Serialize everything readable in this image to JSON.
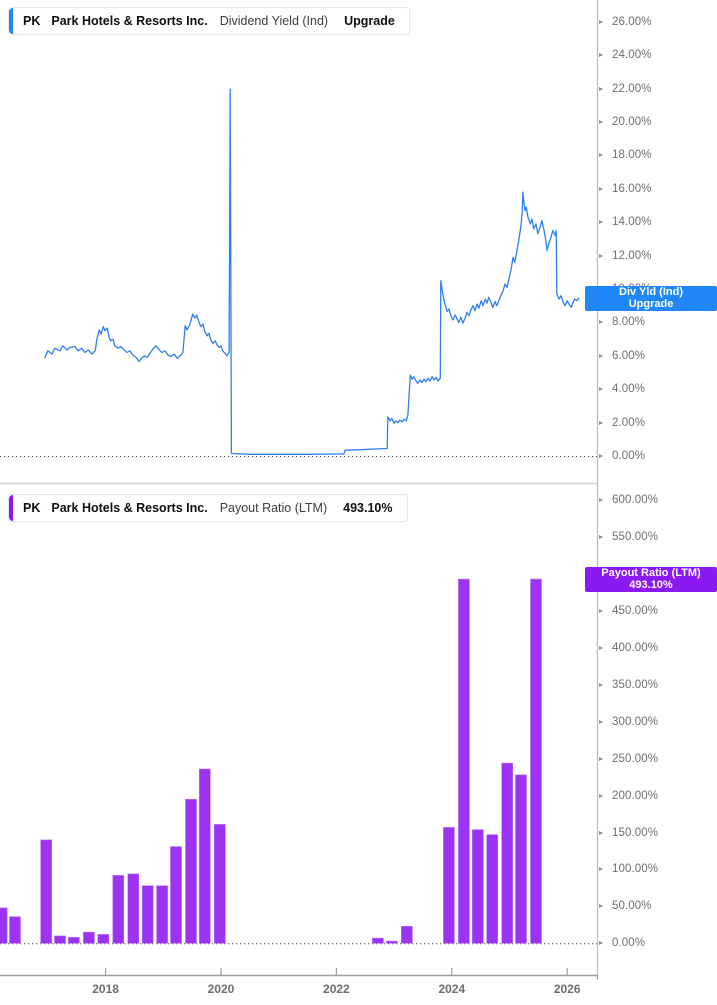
{
  "panels": {
    "top": {
      "ticker": "PK",
      "company": "Park Hotels & Resorts Inc.",
      "metric": "Dividend Yield (Ind)",
      "action": "Upgrade"
    },
    "bottom": {
      "ticker": "PK",
      "company": "Park Hotels & Resorts Inc.",
      "metric": "Payout Ratio (LTM)",
      "value": "493.10%"
    }
  },
  "axis_badges": {
    "dividend_yield": {
      "line1": "Div Yld (Ind)",
      "line2": "Upgrade",
      "color": "#1f87f7",
      "value_pct": 9.45
    },
    "payout_ratio": {
      "line1": "Payout Ratio (LTM)",
      "line2": "493.10%",
      "color": "#8c18f2",
      "value_pct": 493.1
    }
  },
  "x_axis": {
    "ticks": [
      2018,
      2020,
      2022,
      2024,
      2026
    ]
  },
  "colors": {
    "line_blue": "#2e7fef",
    "bar_purple": "#9c33f2",
    "bar_purple_edge": "#b873f8",
    "axis_line": "#bdbdbd",
    "divider": "#dcdcdc",
    "bottom_axis": "#9b9b9b",
    "zero_dotted": "#4a4a4a",
    "tick_text": "#6e6e6e"
  },
  "chart_data": [
    {
      "type": "line",
      "title": "Dividend Yield (Ind)",
      "ticker": "PK",
      "company": "Park Hotels & Resorts Inc.",
      "unit": "percent",
      "legend_position": "right-axis-badge",
      "grid": false,
      "x_unit": "year",
      "xlim": [
        2016.15,
        2026.5
      ],
      "ylim": [
        0,
        27.3
      ],
      "yticks": [
        0,
        2,
        4,
        6,
        8,
        10,
        12,
        14,
        16,
        18,
        20,
        22,
        24,
        26
      ],
      "zero_line": 0,
      "last_value_pct": 9.45,
      "points": [
        [
          2016.95,
          5.9
        ],
        [
          2017.0,
          6.3
        ],
        [
          2017.07,
          6.1
        ],
        [
          2017.12,
          6.45
        ],
        [
          2017.21,
          6.3
        ],
        [
          2017.26,
          6.6
        ],
        [
          2017.33,
          6.35
        ],
        [
          2017.38,
          6.5
        ],
        [
          2017.47,
          6.55
        ],
        [
          2017.52,
          6.3
        ],
        [
          2017.59,
          6.45
        ],
        [
          2017.64,
          6.2
        ],
        [
          2017.7,
          6.35
        ],
        [
          2017.76,
          6.1
        ],
        [
          2017.82,
          6.3
        ],
        [
          2017.85,
          7.0
        ],
        [
          2017.89,
          7.55
        ],
        [
          2017.92,
          7.3
        ],
        [
          2017.96,
          7.75
        ],
        [
          2017.99,
          7.5
        ],
        [
          2018.03,
          7.65
        ],
        [
          2018.06,
          7.1
        ],
        [
          2018.09,
          6.9
        ],
        [
          2018.13,
          7.0
        ],
        [
          2018.16,
          6.6
        ],
        [
          2018.22,
          6.45
        ],
        [
          2018.27,
          6.55
        ],
        [
          2018.32,
          6.35
        ],
        [
          2018.37,
          6.2
        ],
        [
          2018.42,
          6.3
        ],
        [
          2018.47,
          6.05
        ],
        [
          2018.53,
          5.9
        ],
        [
          2018.58,
          5.65
        ],
        [
          2018.61,
          5.8
        ],
        [
          2018.67,
          6.0
        ],
        [
          2018.72,
          5.9
        ],
        [
          2018.77,
          6.15
        ],
        [
          2018.82,
          6.4
        ],
        [
          2018.87,
          6.6
        ],
        [
          2018.93,
          6.35
        ],
        [
          2018.98,
          6.2
        ],
        [
          2019.03,
          6.3
        ],
        [
          2019.08,
          6.05
        ],
        [
          2019.13,
          5.95
        ],
        [
          2019.19,
          6.1
        ],
        [
          2019.24,
          5.85
        ],
        [
          2019.29,
          6.0
        ],
        [
          2019.34,
          6.2
        ],
        [
          2019.38,
          7.8
        ],
        [
          2019.41,
          7.55
        ],
        [
          2019.45,
          7.8
        ],
        [
          2019.48,
          8.1
        ],
        [
          2019.51,
          8.5
        ],
        [
          2019.55,
          8.25
        ],
        [
          2019.58,
          8.45
        ],
        [
          2019.62,
          8.0
        ],
        [
          2019.65,
          7.75
        ],
        [
          2019.69,
          7.9
        ],
        [
          2019.72,
          7.45
        ],
        [
          2019.76,
          7.2
        ],
        [
          2019.79,
          7.35
        ],
        [
          2019.83,
          6.9
        ],
        [
          2019.86,
          6.75
        ],
        [
          2019.9,
          6.9
        ],
        [
          2019.93,
          6.65
        ],
        [
          2019.97,
          6.5
        ],
        [
          2020.0,
          6.6
        ],
        [
          2020.03,
          6.3
        ],
        [
          2020.07,
          6.15
        ],
        [
          2020.1,
          6.0
        ],
        [
          2020.14,
          6.2
        ],
        [
          2020.16,
          21.97
        ],
        [
          2020.18,
          0.15
        ],
        [
          2020.5,
          0.1
        ],
        [
          2021.0,
          0.1
        ],
        [
          2021.5,
          0.1
        ],
        [
          2022.0,
          0.12
        ],
        [
          2022.13,
          0.12
        ],
        [
          2022.15,
          0.35
        ],
        [
          2022.41,
          0.38
        ],
        [
          2022.67,
          0.42
        ],
        [
          2022.88,
          0.45
        ],
        [
          2022.89,
          2.35
        ],
        [
          2022.93,
          2.1
        ],
        [
          2022.96,
          2.25
        ],
        [
          2023.0,
          1.95
        ],
        [
          2023.03,
          2.1
        ],
        [
          2023.07,
          2.0
        ],
        [
          2023.1,
          2.15
        ],
        [
          2023.14,
          2.05
        ],
        [
          2023.17,
          2.2
        ],
        [
          2023.21,
          2.1
        ],
        [
          2023.24,
          2.45
        ],
        [
          2023.28,
          4.85
        ],
        [
          2023.31,
          4.6
        ],
        [
          2023.34,
          4.75
        ],
        [
          2023.38,
          4.5
        ],
        [
          2023.41,
          4.35
        ],
        [
          2023.45,
          4.55
        ],
        [
          2023.48,
          4.4
        ],
        [
          2023.52,
          4.6
        ],
        [
          2023.55,
          4.45
        ],
        [
          2023.59,
          4.65
        ],
        [
          2023.62,
          4.5
        ],
        [
          2023.66,
          4.75
        ],
        [
          2023.69,
          4.55
        ],
        [
          2023.73,
          4.7
        ],
        [
          2023.76,
          4.5
        ],
        [
          2023.8,
          4.65
        ],
        [
          2023.81,
          10.5
        ],
        [
          2023.85,
          9.6
        ],
        [
          2023.88,
          9.1
        ],
        [
          2023.92,
          8.65
        ],
        [
          2023.95,
          8.8
        ],
        [
          2023.99,
          8.35
        ],
        [
          2024.02,
          8.15
        ],
        [
          2024.06,
          8.45
        ],
        [
          2024.09,
          8.2
        ],
        [
          2024.12,
          8.0
        ],
        [
          2024.16,
          8.3
        ],
        [
          2024.19,
          7.95
        ],
        [
          2024.23,
          8.25
        ],
        [
          2024.26,
          8.6
        ],
        [
          2024.3,
          8.4
        ],
        [
          2024.33,
          8.75
        ],
        [
          2024.37,
          9.0
        ],
        [
          2024.4,
          8.7
        ],
        [
          2024.44,
          9.1
        ],
        [
          2024.47,
          8.85
        ],
        [
          2024.51,
          9.3
        ],
        [
          2024.54,
          9.0
        ],
        [
          2024.58,
          9.4
        ],
        [
          2024.61,
          9.15
        ],
        [
          2024.64,
          9.5
        ],
        [
          2024.68,
          9.2
        ],
        [
          2024.71,
          8.9
        ],
        [
          2024.75,
          9.25
        ],
        [
          2024.78,
          9.0
        ],
        [
          2024.82,
          9.35
        ],
        [
          2024.85,
          9.6
        ],
        [
          2024.89,
          9.9
        ],
        [
          2024.92,
          10.3
        ],
        [
          2024.96,
          10.1
        ],
        [
          2024.99,
          10.6
        ],
        [
          2025.03,
          11.2
        ],
        [
          2025.06,
          11.9
        ],
        [
          2025.09,
          11.6
        ],
        [
          2025.13,
          12.3
        ],
        [
          2025.16,
          12.9
        ],
        [
          2025.2,
          13.8
        ],
        [
          2025.22,
          14.6
        ],
        [
          2025.23,
          15.8
        ],
        [
          2025.25,
          15.2
        ],
        [
          2025.27,
          14.7
        ],
        [
          2025.29,
          14.9
        ],
        [
          2025.32,
          14.3
        ],
        [
          2025.36,
          13.9
        ],
        [
          2025.39,
          14.2
        ],
        [
          2025.42,
          13.6
        ],
        [
          2025.46,
          13.9
        ],
        [
          2025.49,
          13.3
        ],
        [
          2025.53,
          13.7
        ],
        [
          2025.56,
          14.1
        ],
        [
          2025.6,
          13.5
        ],
        [
          2025.63,
          12.9
        ],
        [
          2025.65,
          12.3
        ],
        [
          2025.68,
          12.7
        ],
        [
          2025.72,
          13.1
        ],
        [
          2025.75,
          13.5
        ],
        [
          2025.79,
          13.2
        ],
        [
          2025.81,
          13.5
        ],
        [
          2025.82,
          9.7
        ],
        [
          2025.86,
          9.4
        ],
        [
          2025.89,
          9.6
        ],
        [
          2025.93,
          9.2
        ],
        [
          2025.96,
          9.0
        ],
        [
          2026.0,
          9.3
        ],
        [
          2026.03,
          9.1
        ],
        [
          2026.07,
          8.9
        ],
        [
          2026.1,
          9.2
        ],
        [
          2026.13,
          9.4
        ],
        [
          2026.17,
          9.3
        ],
        [
          2026.2,
          9.45
        ]
      ]
    },
    {
      "type": "bar",
      "title": "Payout Ratio (LTM)",
      "ticker": "PK",
      "company": "Park Hotels & Resorts Inc.",
      "unit": "percent",
      "legend_position": "right-axis-badge",
      "grid": false,
      "x_unit": "year",
      "xlim": [
        2016.15,
        2026.5
      ],
      "ylim": [
        0,
        620
      ],
      "yticks": [
        0,
        50,
        100,
        150,
        200,
        250,
        300,
        350,
        400,
        450,
        500,
        550,
        600
      ],
      "zero_line": 0,
      "last_value_pct": 493.1,
      "points": [
        [
          2016.2,
          48
        ],
        [
          2016.43,
          36
        ],
        [
          2016.97,
          140
        ],
        [
          2017.21,
          10
        ],
        [
          2017.45,
          8
        ],
        [
          2017.71,
          15
        ],
        [
          2017.96,
          12
        ],
        [
          2018.22,
          92
        ],
        [
          2018.48,
          94
        ],
        [
          2018.73,
          78
        ],
        [
          2018.98,
          78
        ],
        [
          2019.22,
          131
        ],
        [
          2019.48,
          195
        ],
        [
          2019.72,
          236
        ],
        [
          2019.98,
          161
        ],
        [
          2022.72,
          7
        ],
        [
          2022.96,
          3
        ],
        [
          2023.22,
          23
        ],
        [
          2023.95,
          157
        ],
        [
          2024.21,
          493.1
        ],
        [
          2024.45,
          154
        ],
        [
          2024.7,
          147
        ],
        [
          2024.96,
          244
        ],
        [
          2025.2,
          228
        ],
        [
          2025.46,
          493.1
        ]
      ]
    }
  ]
}
